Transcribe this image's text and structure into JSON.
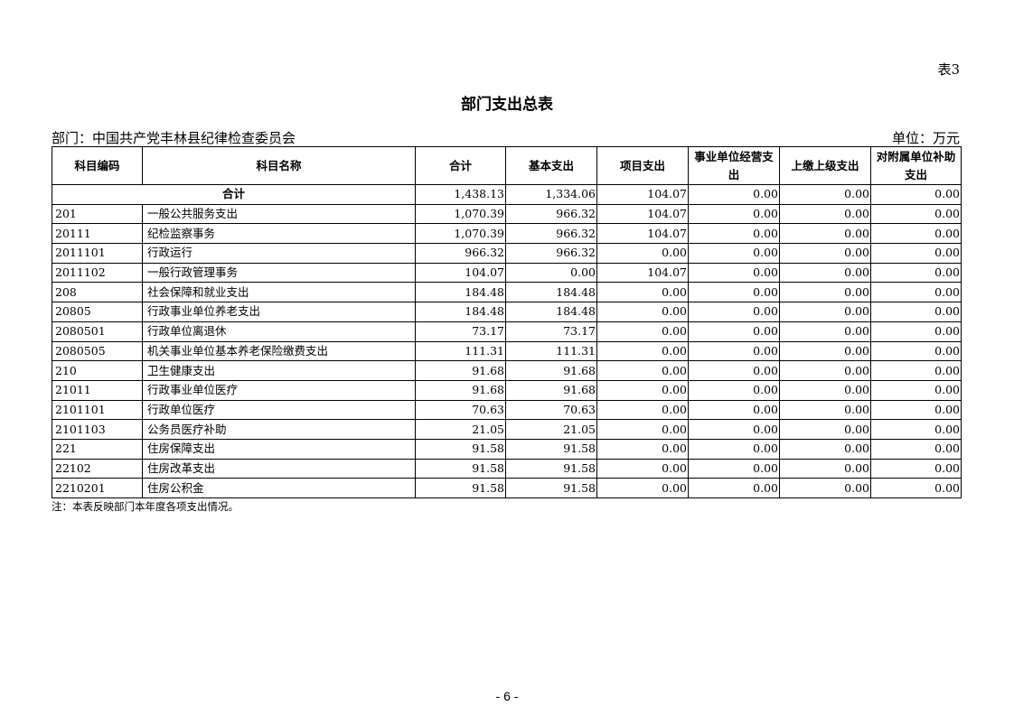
{
  "table_no": "表3",
  "title": "部门支出总表",
  "department": "部门：中国共产党丰林县纪律检查委员会",
  "unit": "单位：万元",
  "headers": [
    "科目编码",
    "科目名称",
    "合计",
    "基本支出",
    "项目支出",
    "事业单位经营支出",
    "上缴上级支出",
    "对附属单位补助支出"
  ],
  "total": {
    "label": "合计",
    "values": [
      "1,438.13",
      "1,334.06",
      "104.07",
      "0.00",
      "0.00",
      "0.00"
    ]
  },
  "rows": [
    {
      "code": "201",
      "name": "一般公共服务支出",
      "values": [
        "1,070.39",
        "966.32",
        "104.07",
        "0.00",
        "0.00",
        "0.00"
      ]
    },
    {
      "code": "20111",
      "name": "纪检监察事务",
      "values": [
        "1,070.39",
        "966.32",
        "104.07",
        "0.00",
        "0.00",
        "0.00"
      ]
    },
    {
      "code": "2011101",
      "name": "行政运行",
      "values": [
        "966.32",
        "966.32",
        "0.00",
        "0.00",
        "0.00",
        "0.00"
      ]
    },
    {
      "code": "2011102",
      "name": "一般行政管理事务",
      "values": [
        "104.07",
        "0.00",
        "104.07",
        "0.00",
        "0.00",
        "0.00"
      ]
    },
    {
      "code": "208",
      "name": "社会保障和就业支出",
      "values": [
        "184.48",
        "184.48",
        "0.00",
        "0.00",
        "0.00",
        "0.00"
      ]
    },
    {
      "code": "20805",
      "name": "行政事业单位养老支出",
      "values": [
        "184.48",
        "184.48",
        "0.00",
        "0.00",
        "0.00",
        "0.00"
      ]
    },
    {
      "code": "2080501",
      "name": "行政单位离退休",
      "values": [
        "73.17",
        "73.17",
        "0.00",
        "0.00",
        "0.00",
        "0.00"
      ]
    },
    {
      "code": "2080505",
      "name": "机关事业单位基本养老保险缴费支出",
      "values": [
        "111.31",
        "111.31",
        "0.00",
        "0.00",
        "0.00",
        "0.00"
      ]
    },
    {
      "code": "210",
      "name": "卫生健康支出",
      "values": [
        "91.68",
        "91.68",
        "0.00",
        "0.00",
        "0.00",
        "0.00"
      ]
    },
    {
      "code": "21011",
      "name": "行政事业单位医疗",
      "values": [
        "91.68",
        "91.68",
        "0.00",
        "0.00",
        "0.00",
        "0.00"
      ]
    },
    {
      "code": "2101101",
      "name": "行政单位医疗",
      "values": [
        "70.63",
        "70.63",
        "0.00",
        "0.00",
        "0.00",
        "0.00"
      ]
    },
    {
      "code": "2101103",
      "name": "公务员医疗补助",
      "values": [
        "21.05",
        "21.05",
        "0.00",
        "0.00",
        "0.00",
        "0.00"
      ]
    },
    {
      "code": "221",
      "name": "住房保障支出",
      "values": [
        "91.58",
        "91.58",
        "0.00",
        "0.00",
        "0.00",
        "0.00"
      ]
    },
    {
      "code": "22102",
      "name": "住房改革支出",
      "values": [
        "91.58",
        "91.58",
        "0.00",
        "0.00",
        "0.00",
        "0.00"
      ]
    },
    {
      "code": "2210201",
      "name": "住房公积金",
      "values": [
        "91.58",
        "91.58",
        "0.00",
        "0.00",
        "0.00",
        "0.00"
      ]
    }
  ],
  "note": "注：本表反映部门本年度各项支出情况。",
  "page_number": "- 6 -"
}
